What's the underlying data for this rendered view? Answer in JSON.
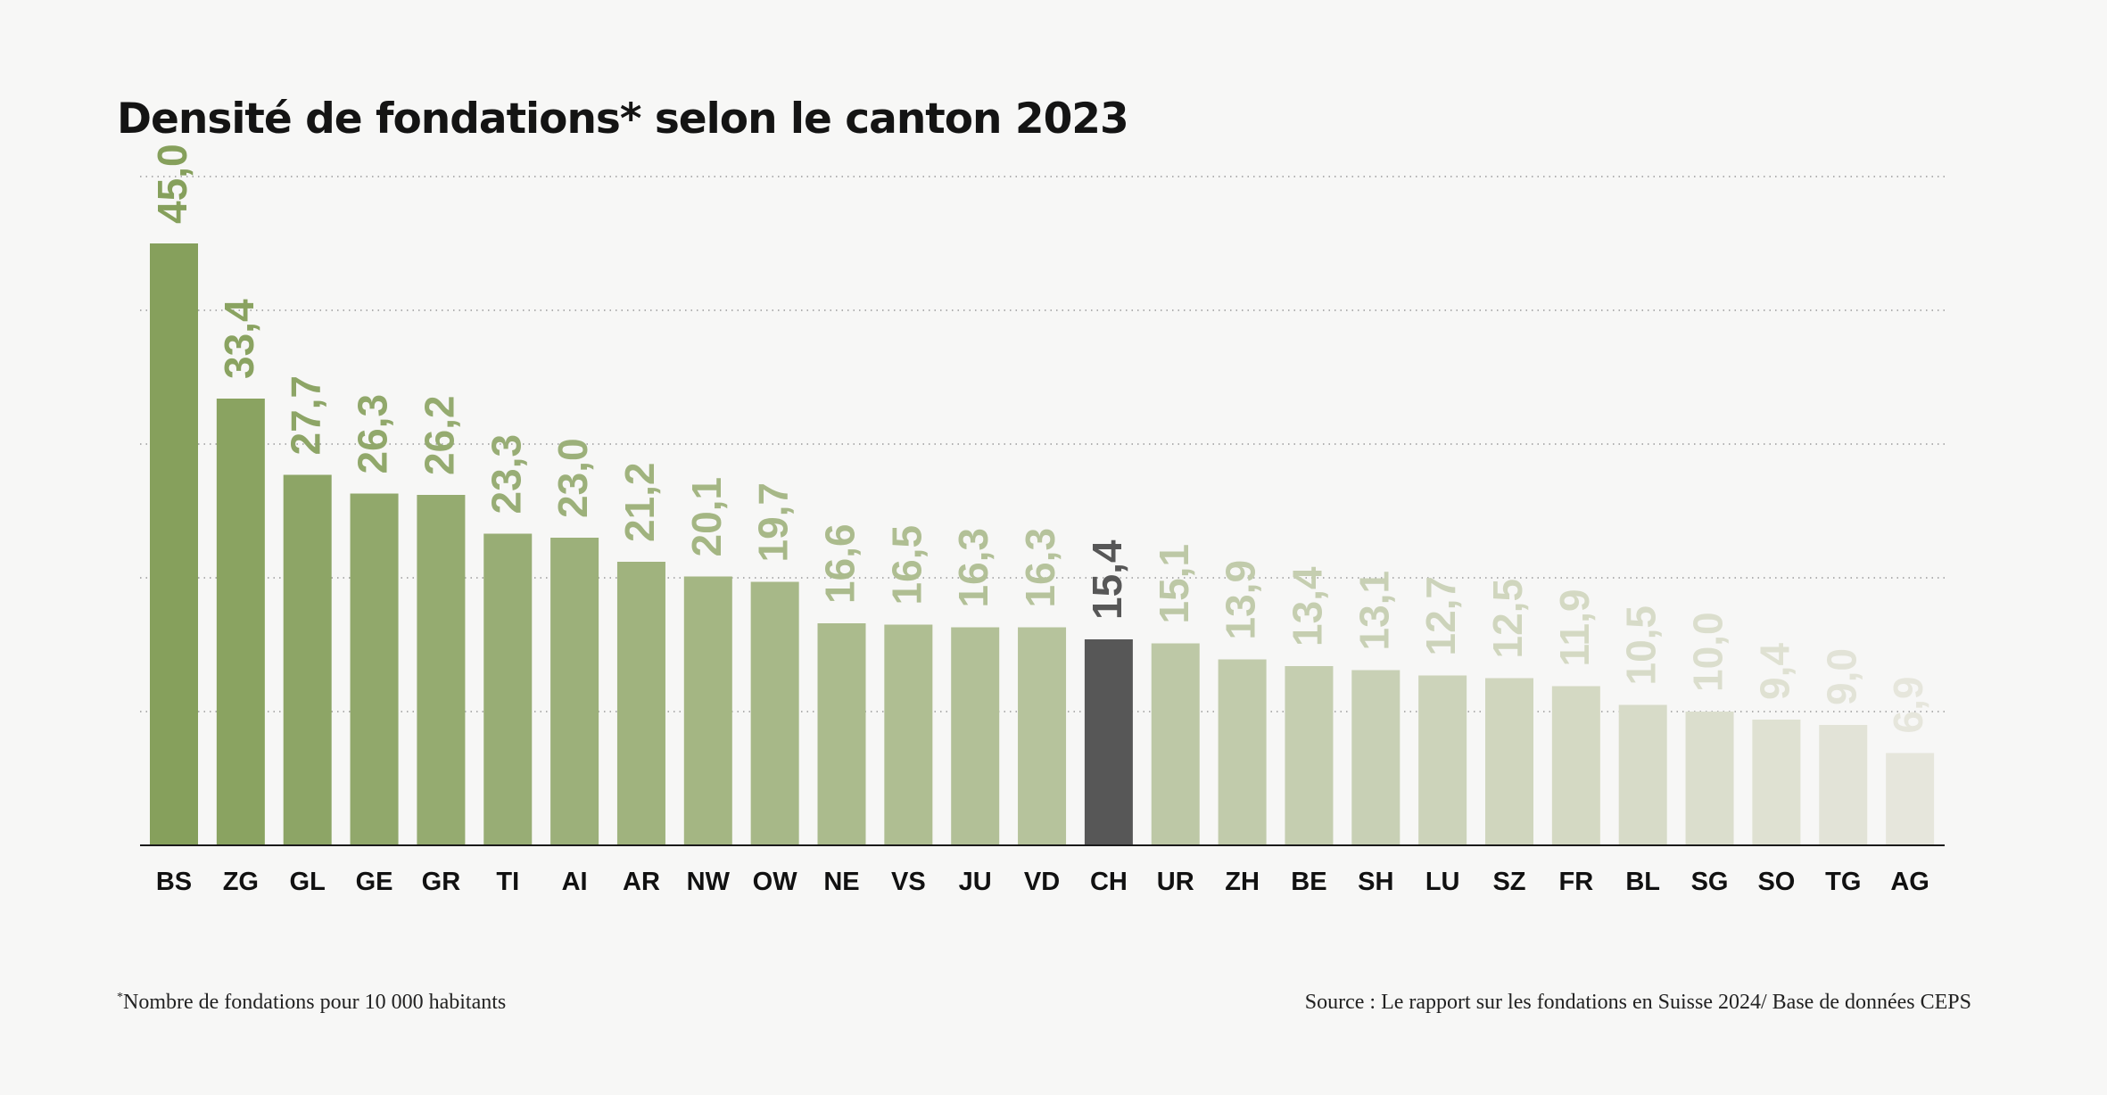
{
  "chart_data": {
    "type": "bar",
    "title": "Densité de fondations* selon le canton 2023",
    "categories": [
      "BS",
      "ZG",
      "GL",
      "GE",
      "GR",
      "TI",
      "AI",
      "AR",
      "NW",
      "OW",
      "NE",
      "VS",
      "JU",
      "VD",
      "CH",
      "UR",
      "ZH",
      "BE",
      "SH",
      "LU",
      "SZ",
      "FR",
      "BL",
      "SG",
      "SO",
      "TG",
      "AG"
    ],
    "values": [
      45.0,
      33.4,
      27.7,
      26.3,
      26.2,
      23.3,
      23.0,
      21.2,
      20.1,
      19.7,
      16.6,
      16.5,
      16.3,
      16.3,
      15.4,
      15.1,
      13.9,
      13.4,
      13.1,
      12.7,
      12.5,
      11.9,
      10.5,
      10.0,
      9.4,
      9.0,
      6.9
    ],
    "value_labels": [
      "45,0",
      "33,4",
      "27,7",
      "26,3",
      "26,2",
      "23,3",
      "23,0",
      "21,2",
      "20,1",
      "19,7",
      "16,6",
      "16,5",
      "16,3",
      "16,3",
      "15,4",
      "15,1",
      "13,9",
      "13,4",
      "13,1",
      "12,7",
      "12,5",
      "11,9",
      "10,5",
      "10,0",
      "9,4",
      "9,0",
      "6,9"
    ],
    "highlight": "CH",
    "ylim": [
      0,
      50
    ],
    "grid": true,
    "xlabel": "",
    "ylabel": "",
    "colors": {
      "gradient_start": "#86a05c",
      "gradient_end": "#e6e6dc",
      "highlight": "#575757",
      "axis": "#1a1a1a",
      "grid": "#9a9a9a",
      "category_label": "#111111"
    }
  },
  "footnotes": {
    "marker": "*",
    "left": "Nombre de fondations pour 10 000 habitants",
    "right": "Source : Le rapport sur les fondations en Suisse 2024/ Base de données CEPS"
  }
}
